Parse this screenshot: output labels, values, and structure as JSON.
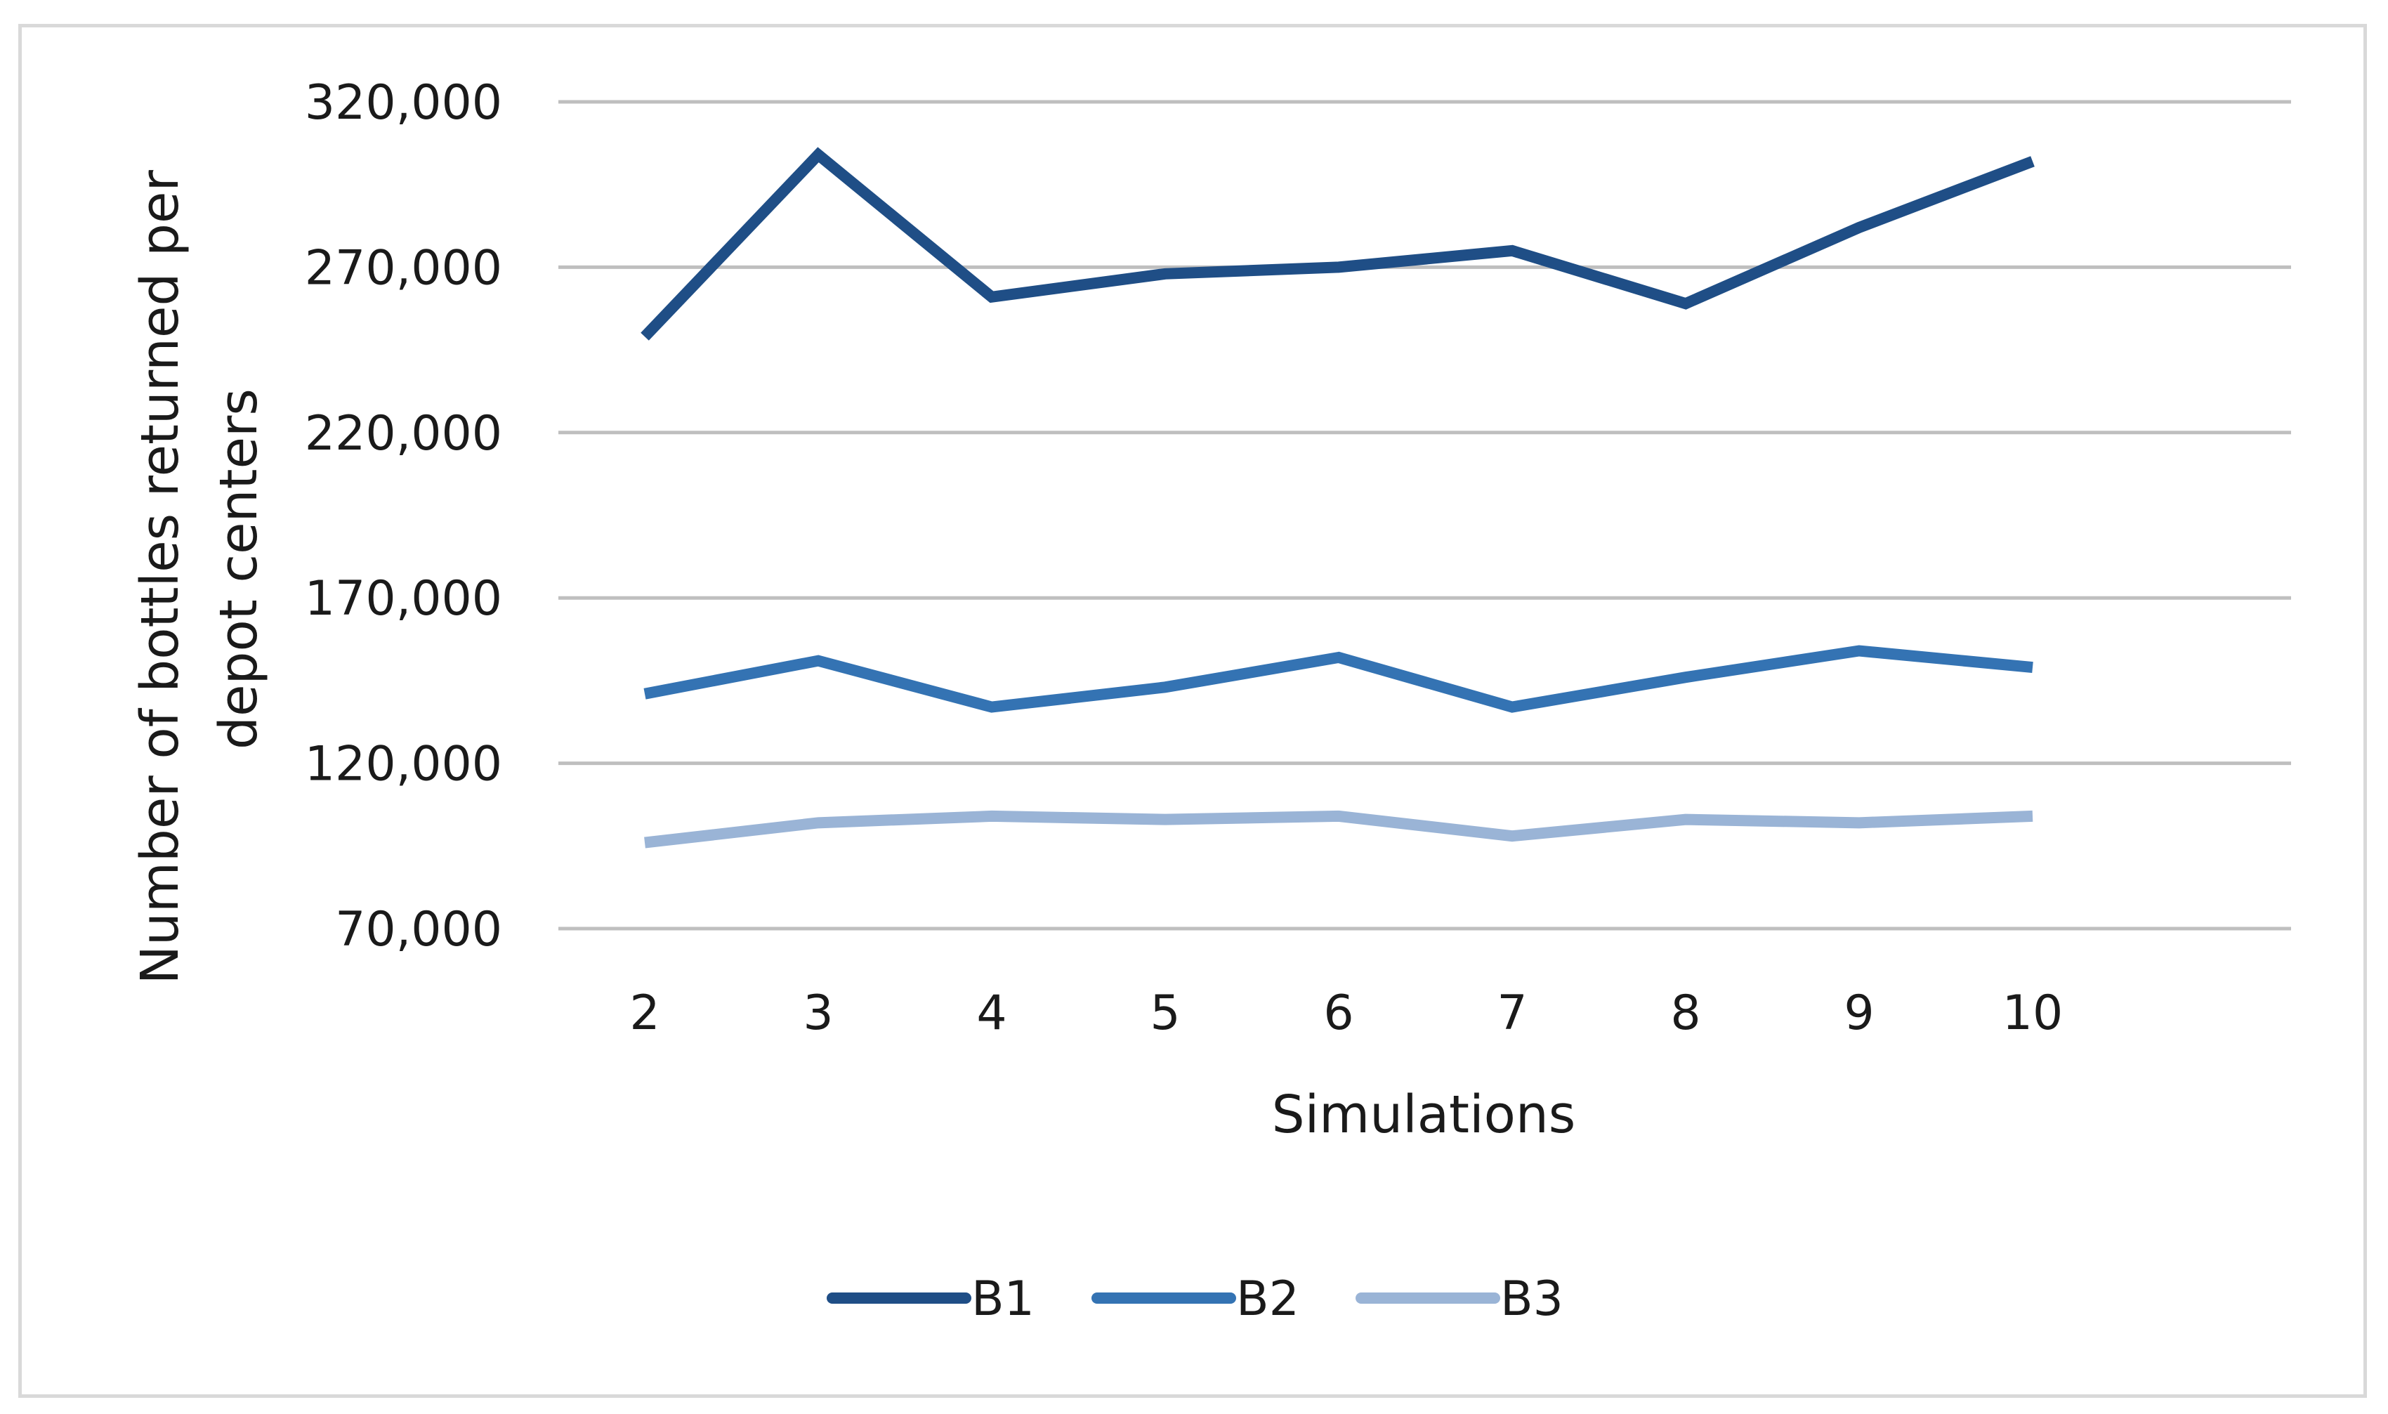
{
  "chart_data": {
    "type": "line",
    "title": "",
    "xlabel": "Simulations",
    "ylabel_lines": [
      "Number of bottles returned  per",
      "depot centers"
    ],
    "x": [
      "2",
      "3",
      "4",
      "5",
      "6",
      "7",
      "8",
      "9",
      "10"
    ],
    "ylim": [
      70000,
      320000
    ],
    "yticks": [
      70000,
      120000,
      170000,
      220000,
      270000,
      320000
    ],
    "ytick_labels": [
      "70,000",
      "120,000",
      "170,000",
      "220,000",
      "270,000",
      "320,000"
    ],
    "grid": "horizontal",
    "legend_position": "bottom",
    "series": [
      {
        "name": "B1",
        "color": "#1f4e86",
        "values": [
          249000,
          304000,
          261000,
          268000,
          270000,
          275000,
          259000,
          282000,
          302000
        ]
      },
      {
        "name": "B2",
        "color": "#3473b3",
        "values": [
          141000,
          151000,
          137000,
          143000,
          152000,
          137000,
          146000,
          154000,
          149000
        ]
      },
      {
        "name": "B3",
        "color": "#9ab4d6",
        "values": [
          96000,
          102000,
          104000,
          103000,
          104000,
          98000,
          103000,
          102000,
          104000
        ]
      }
    ]
  }
}
